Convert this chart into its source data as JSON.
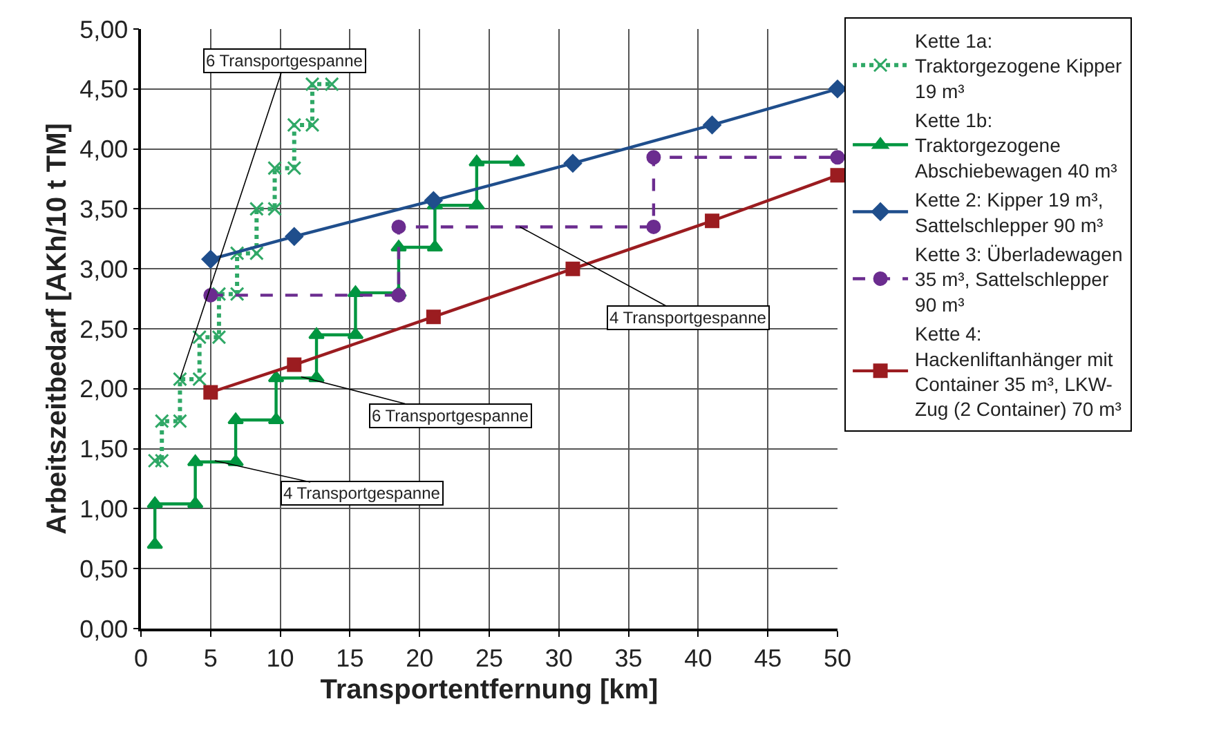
{
  "chart_data": {
    "type": "line",
    "xlabel": "Transportentfernung [km]",
    "ylabel": "Arbeitszeitbedarf [AKh/10 t TM]",
    "xlim": [
      0,
      50
    ],
    "xticks": [
      0,
      5,
      10,
      15,
      20,
      25,
      30,
      35,
      40,
      45,
      50
    ],
    "ylim": [
      0,
      5
    ],
    "yticks": [
      {
        "value": 0,
        "label": "0,00"
      },
      {
        "value": 0.5,
        "label": "0,50"
      },
      {
        "value": 1,
        "label": "1,00"
      },
      {
        "value": 1.5,
        "label": "1,50"
      },
      {
        "value": 2,
        "label": "2,00"
      },
      {
        "value": 2.5,
        "label": "2,50"
      },
      {
        "value": 3,
        "label": "3,00"
      },
      {
        "value": 3.5,
        "label": "3,50"
      },
      {
        "value": 4,
        "label": "4,00"
      },
      {
        "value": 4.5,
        "label": "4,50"
      },
      {
        "value": 5,
        "label": "5,00"
      }
    ],
    "grid": true,
    "legend": "right",
    "series": [
      {
        "name": "Kette 1a: Traktorgezogene Kipper 19 m³",
        "color": "#2fa866",
        "marker": "cross",
        "line_style": "dotted",
        "x": [
          1.0,
          1.5,
          1.5,
          2.8,
          2.8,
          4.2,
          4.2,
          5.6,
          5.6,
          6.9,
          6.9,
          8.3,
          8.3,
          9.6,
          9.6,
          11.0,
          11.0,
          12.3,
          12.3,
          13.7
        ],
        "values": [
          1.4,
          1.4,
          1.73,
          1.73,
          2.08,
          2.08,
          2.43,
          2.43,
          2.79,
          2.79,
          3.13,
          3.13,
          3.5,
          3.5,
          3.84,
          3.84,
          4.2,
          4.2,
          4.54,
          4.54
        ]
      },
      {
        "name": "Kette 1b: Traktorgezogene Abschiebewagen 40 m³",
        "color": "#009640",
        "marker": "triangle",
        "line_style": "solid",
        "x": [
          1.0,
          1.0,
          3.9,
          3.9,
          6.8,
          6.8,
          9.7,
          9.7,
          12.6,
          12.6,
          15.4,
          15.4,
          18.5,
          18.5,
          21.1,
          21.1,
          24.1,
          24.1,
          27.0
        ],
        "values": [
          0.7,
          1.04,
          1.04,
          1.39,
          1.39,
          1.74,
          1.74,
          2.09,
          2.09,
          2.45,
          2.45,
          2.8,
          2.8,
          3.18,
          3.18,
          3.53,
          3.53,
          3.89,
          3.89
        ]
      },
      {
        "name": "Kette 2: Kipper 19 m³, Sattelschlepper 90 m³",
        "color": "#1f4e8c",
        "marker": "diamond",
        "line_style": "solid",
        "x": [
          5,
          11,
          21,
          31,
          41,
          50
        ],
        "values": [
          3.08,
          3.27,
          3.57,
          3.88,
          4.2,
          4.5
        ]
      },
      {
        "name": "Kette 3: Überladewagen 35 m³, Sattelschlepper 90 m³",
        "color": "#6b2c8f",
        "marker": "circle",
        "line_style": "dashed",
        "x": [
          5,
          18.5,
          18.5,
          36.8,
          36.8,
          50
        ],
        "values": [
          2.78,
          2.78,
          3.35,
          3.35,
          3.93,
          3.93
        ]
      },
      {
        "name": "Kette 4: Hackenliftanhänger mit Container 35 m³, LKW-Zug (2 Container) 70 m³",
        "color": "#9b1c20",
        "marker": "square",
        "line_style": "solid",
        "x": [
          5,
          11,
          21,
          31,
          41,
          50
        ],
        "values": [
          1.97,
          2.2,
          2.6,
          3.0,
          3.4,
          3.78
        ]
      }
    ],
    "annotations": [
      {
        "text": "6 Transportgespanne",
        "x": 2.8,
        "y": 2.08
      },
      {
        "text": "6 Transportgespanne",
        "x": 11.5,
        "y": 2.1
      },
      {
        "text": "4 Transportgespanne",
        "x": 5.3,
        "y": 1.4
      },
      {
        "text": "4 Transportgespanne",
        "x": 27.2,
        "y": 3.35
      }
    ]
  }
}
